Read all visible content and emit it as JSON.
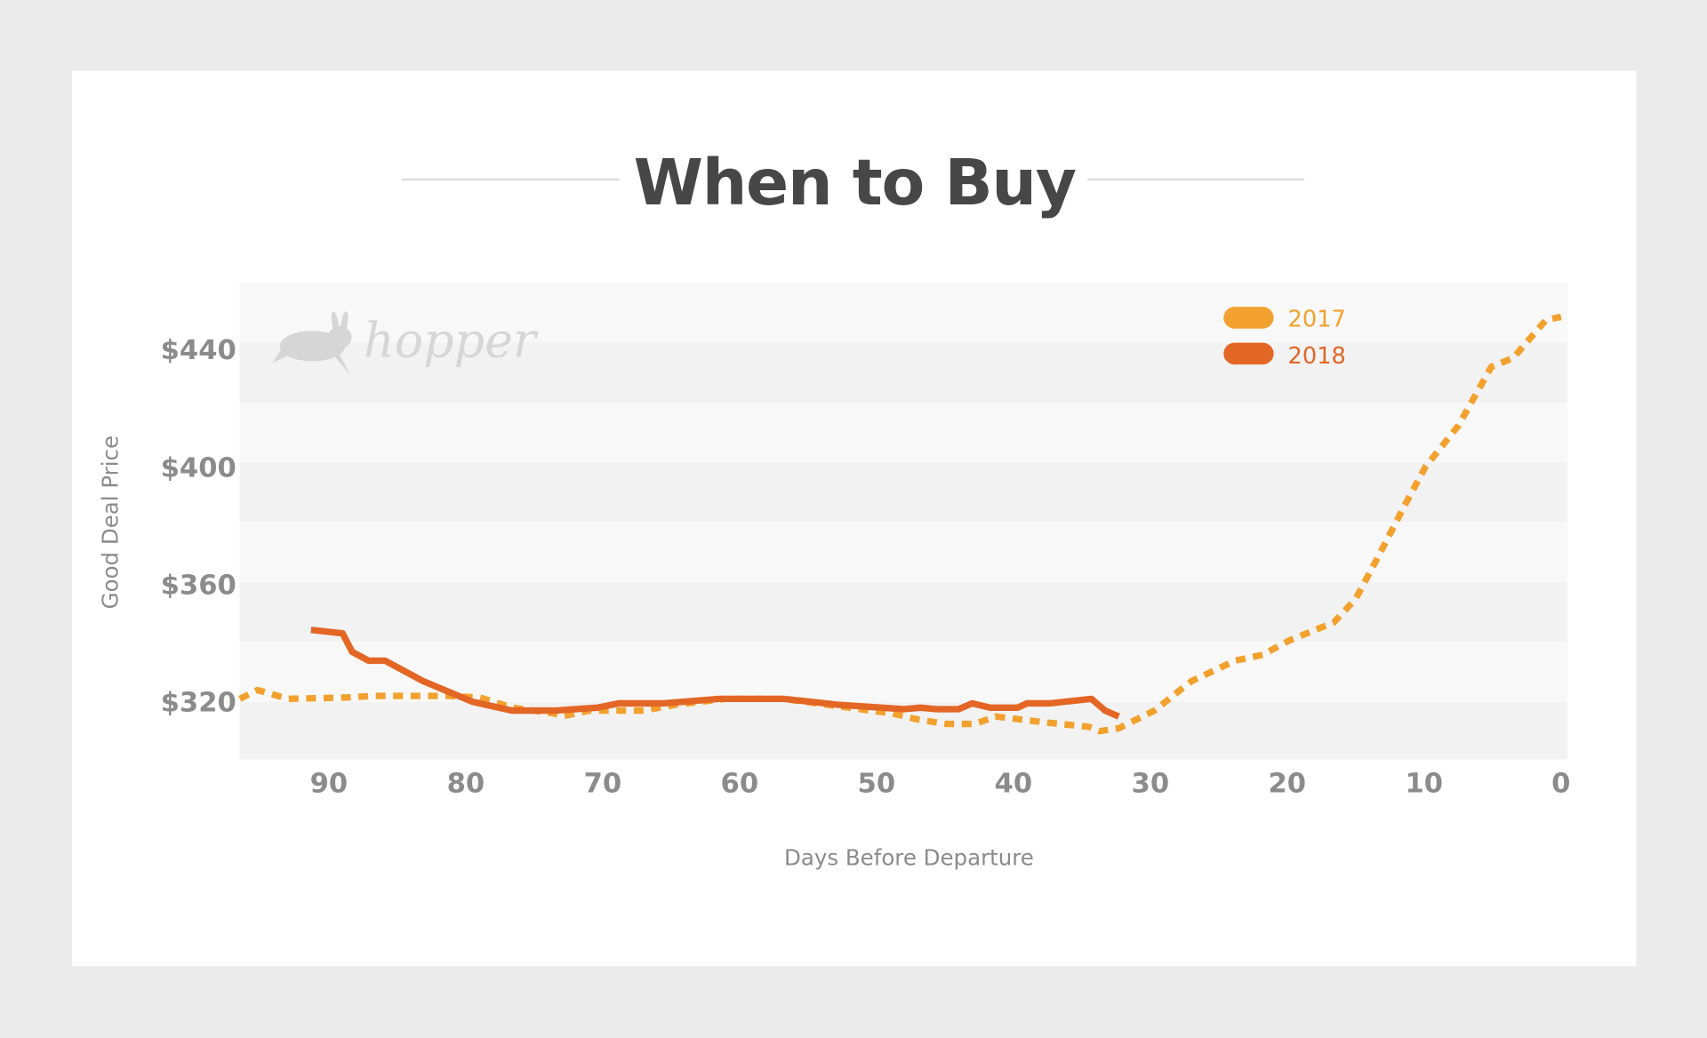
{
  "chart_data": {
    "type": "line",
    "title": "When to Buy",
    "xlabel": "Days Before Departure",
    "ylabel": "Good Deal Price",
    "xlim": [
      96.5,
      0
    ],
    "x_reversed": true,
    "ylim": [
      300,
      462
    ],
    "xticks": [
      90,
      80,
      70,
      60,
      50,
      40,
      30,
      20,
      10,
      0
    ],
    "xtick_labels": [
      "90",
      "80",
      "70",
      "60",
      "50",
      "40",
      "30",
      "20",
      "10",
      "0"
    ],
    "yticks": [
      320,
      360,
      400,
      440
    ],
    "ytick_labels": [
      "$320",
      "$360",
      "$400",
      "$440"
    ],
    "grid": "alternating horizontal bands",
    "legend_position": "top-right",
    "logo_text": "hopper",
    "series": [
      {
        "name": "2017",
        "color": "#f2a12e",
        "style": "dotted",
        "x": [
          96.5,
          95.2,
          93,
          88.7,
          86.6,
          83.8,
          81.4,
          79,
          76.6,
          73.5,
          73,
          71,
          67,
          64.7,
          61,
          56.8,
          53.6,
          48.8,
          47,
          45,
          42.8,
          41.3,
          37.7,
          34.5,
          33.7,
          32.3,
          29.7,
          27,
          23.8,
          21.8,
          19.8,
          16.6,
          15,
          13.4,
          11.4,
          9.9,
          7.5,
          5.1,
          3.5,
          1.1,
          0
        ],
        "y": [
          321,
          324,
          321,
          321.5,
          322,
          322,
          322,
          321.5,
          318,
          316,
          315,
          317,
          317,
          319,
          321,
          321,
          319,
          316,
          314,
          312.5,
          312.5,
          315,
          313,
          311.5,
          310,
          311,
          317,
          327,
          334,
          336,
          341,
          347,
          355,
          369,
          387,
          400,
          414,
          434,
          437,
          450,
          451
        ]
      },
      {
        "name": "2018",
        "color": "#e36625",
        "style": "solid",
        "x": [
          91.3,
          89,
          88.3,
          87.1,
          85.9,
          83.1,
          79.5,
          76.6,
          73.5,
          70.4,
          68.8,
          65.5,
          61.5,
          56.8,
          52.8,
          49.6,
          48,
          46.8,
          45.6,
          44,
          43,
          41.7,
          39.7,
          39,
          37.3,
          34.3,
          33.3,
          32.3
        ],
        "y": [
          344.5,
          343.3,
          337,
          334,
          334,
          327,
          320,
          317,
          317,
          318,
          319.5,
          319.5,
          321,
          321,
          319,
          318,
          317.5,
          318,
          317.5,
          317.5,
          319.5,
          318,
          318,
          319.5,
          319.5,
          321,
          317,
          315
        ]
      }
    ]
  }
}
